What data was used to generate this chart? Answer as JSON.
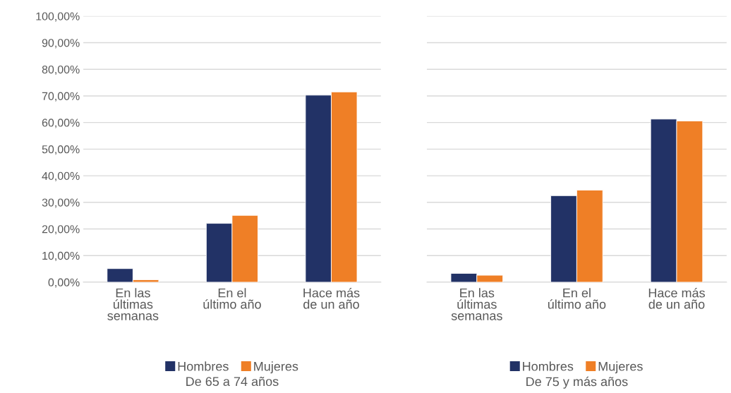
{
  "chart_data": [
    {
      "type": "bar",
      "xlabel": "De 65 a 74 años",
      "categories": [
        "En las\núltimas\nsemanas",
        "En el\núltimo año",
        "Hace más\nde un año"
      ],
      "series": [
        {
          "name": "Hombres",
          "color": "#223266",
          "values": [
            5.1,
            22.1,
            70.3
          ]
        },
        {
          "name": "Mujeres",
          "color": "#ef7f26",
          "values": [
            0.9,
            25.1,
            71.5
          ]
        }
      ],
      "ylim": [
        0,
        100
      ],
      "yticks": [
        {
          "value": 0,
          "label": "0,00%"
        },
        {
          "value": 10,
          "label": "10,00%"
        },
        {
          "value": 20,
          "label": "20,00%"
        },
        {
          "value": 30,
          "label": "30,00%"
        },
        {
          "value": 40,
          "label": "40,00%"
        },
        {
          "value": 50,
          "label": "50,00%"
        },
        {
          "value": 60,
          "label": "60,00%"
        },
        {
          "value": 70,
          "label": "70,00%"
        },
        {
          "value": 80,
          "label": "80,00%"
        },
        {
          "value": 90,
          "label": "90,00%"
        },
        {
          "value": 100,
          "label": "100,00%"
        }
      ],
      "grid": "y",
      "legend": "bottom"
    },
    {
      "type": "bar",
      "xlabel": "De 75 y más años",
      "categories": [
        "En las\núltimas\nsemanas",
        "En el\núltimo año",
        "Hace más\nde un año"
      ],
      "series": [
        {
          "name": "Hombres",
          "color": "#223266",
          "values": [
            3.3,
            32.5,
            61.3
          ]
        },
        {
          "name": "Mujeres",
          "color": "#ef7f26",
          "values": [
            2.6,
            34.6,
            60.6
          ]
        }
      ],
      "ylim": [
        0,
        100
      ],
      "yticks": [
        {
          "value": 0,
          "label": null
        },
        {
          "value": 10,
          "label": null
        },
        {
          "value": 20,
          "label": null
        },
        {
          "value": 30,
          "label": null
        },
        {
          "value": 40,
          "label": null
        },
        {
          "value": 50,
          "label": null
        },
        {
          "value": 60,
          "label": null
        },
        {
          "value": 70,
          "label": null
        },
        {
          "value": 80,
          "label": null
        },
        {
          "value": 90,
          "label": null
        },
        {
          "value": 100,
          "label": null
        }
      ],
      "grid": "y",
      "legend": "bottom",
      "tick_labels": "x"
    }
  ]
}
